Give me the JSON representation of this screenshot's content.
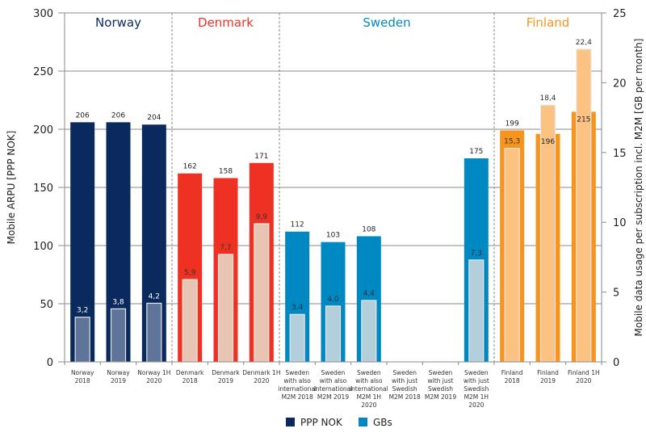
{
  "chart_data": {
    "type": "bar",
    "title": "",
    "ylabel": "Mobile ARPU [PPP NOK]",
    "y2label": "Mobile data usage per subscription incl. M2M [GB per month]",
    "ylim": [
      0,
      300
    ],
    "y2lim": [
      0,
      25
    ],
    "yticks": [
      "0",
      "50",
      "100",
      "150",
      "200",
      "250",
      "300"
    ],
    "y2ticks": [
      "0",
      "5",
      "10",
      "15",
      "20",
      "25"
    ],
    "grid": true,
    "legend_position": "bottom-center",
    "groups": [
      {
        "name": "Norway",
        "color": "#0a2a5e",
        "gbColor": "#5e7599",
        "labelColor": "#0a2a5e",
        "gbLabelColor": "#ffffff",
        "start": 0,
        "end": 3
      },
      {
        "name": "Denmark",
        "color": "#ef3124",
        "gbColor": "#e8c4b2",
        "labelColor": "#ef3124",
        "gbLabelColor": "#333333",
        "start": 3,
        "end": 6
      },
      {
        "name": "Sweden",
        "color": "#0088c2",
        "gbColor": "#b3cfdc",
        "labelColor": "#0088c2",
        "gbLabelColor": "#333333",
        "start": 6,
        "end": 12
      },
      {
        "name": "Finland",
        "color": "#f7941d",
        "gbColor": "#fbc282",
        "labelColor": "#f7941d",
        "gbLabelColor": "#333333",
        "start": 12,
        "end": 15
      }
    ],
    "categories": [
      [
        "Norway",
        "2018"
      ],
      [
        "Norway",
        "2019"
      ],
      [
        "Norway 1H",
        "2020"
      ],
      [
        "Denmark",
        "2018"
      ],
      [
        "Denmark",
        "2019"
      ],
      [
        "Denmark 1H",
        "2020"
      ],
      [
        "Sweden",
        "with also",
        "international",
        "M2M 2018"
      ],
      [
        "Sweden",
        "with also",
        "international",
        "M2M 2019"
      ],
      [
        "Sweden",
        "with also",
        "international",
        "M2M 1H",
        "2020"
      ],
      [
        "Sweden",
        "with just",
        "Swedish",
        "M2M 2018"
      ],
      [
        "Sweden",
        "with just",
        "Swedish",
        "M2M 2019"
      ],
      [
        "Sweden",
        "with just",
        "Swedish",
        "M2M 1H",
        "2020"
      ],
      [
        "Finland",
        "2018"
      ],
      [
        "Finland",
        "2019"
      ],
      [
        "Finland 1H",
        "2020"
      ]
    ],
    "series": [
      {
        "name": "PPP NOK",
        "axis": "left",
        "values": [
          206,
          206,
          204,
          162,
          158,
          171,
          112,
          103,
          108,
          null,
          null,
          175,
          199,
          196,
          215
        ],
        "labels": [
          "206",
          "206",
          "204",
          "162",
          "158",
          "171",
          "112",
          "103",
          "108",
          "",
          "",
          "175",
          "199",
          "196",
          "215"
        ]
      },
      {
        "name": "GBs",
        "axis": "right",
        "values": [
          3.2,
          3.8,
          4.2,
          5.9,
          7.7,
          9.9,
          3.4,
          4.0,
          4.4,
          null,
          null,
          7.3,
          15.3,
          18.4,
          22.4
        ],
        "labels": [
          "3,2",
          "3,8",
          "4,2",
          "5,9",
          "7,7",
          "9,9",
          "3,4",
          "4,0",
          "4,4",
          "",
          "",
          "7,3",
          "15,3",
          "18,4",
          "22,4"
        ]
      }
    ],
    "legend": [
      {
        "label": "PPP NOK",
        "color": "#0a2a5e"
      },
      {
        "label": "GBs",
        "color": "#0088c2"
      }
    ]
  }
}
